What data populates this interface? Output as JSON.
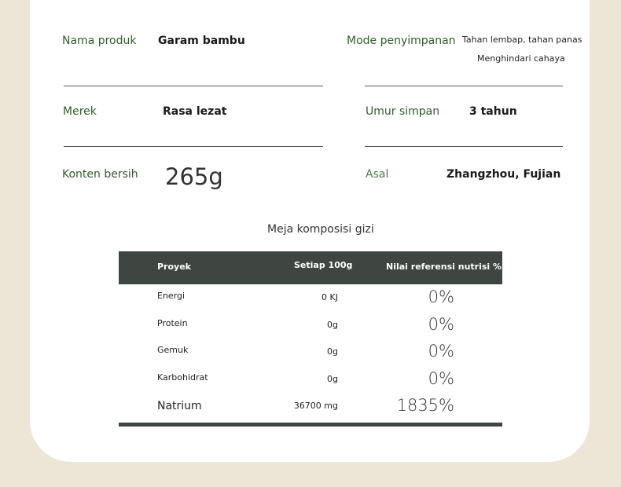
{
  "colors": {
    "background": "#ede5d6",
    "label": "#2f5e2a",
    "table_header": "#3f4541"
  },
  "specs": {
    "product_name": {
      "label": "Nama produk",
      "value": "Garam bambu"
    },
    "storage": {
      "label": "Mode penyimpanan",
      "value_line1": "Tahan lembap, tahan panas",
      "value_line2": "Menghindari cahaya"
    },
    "brand": {
      "label": "Merek",
      "value": "Rasa lezat"
    },
    "shelf_life": {
      "label": "Umur simpan",
      "value": "3 tahun"
    },
    "net_content": {
      "label": "Konten bersih",
      "value": "265g"
    },
    "origin": {
      "label": "Asal",
      "value": "Zhangzhou, Fujian"
    }
  },
  "nutrition": {
    "title": "Meja komposisi gizi",
    "headers": [
      "Proyek",
      "Setiap 100g",
      "Nilai referensi nutrisi %"
    ],
    "rows": [
      [
        "Energi",
        "0 KJ",
        "0%"
      ],
      [
        "Protein",
        "0g",
        "0%"
      ],
      [
        "Gemuk",
        "0g",
        "0%"
      ],
      [
        "Karbohidrat",
        "0g",
        "0%"
      ],
      [
        "Natrium",
        "36700 mg",
        "1835%"
      ]
    ]
  }
}
